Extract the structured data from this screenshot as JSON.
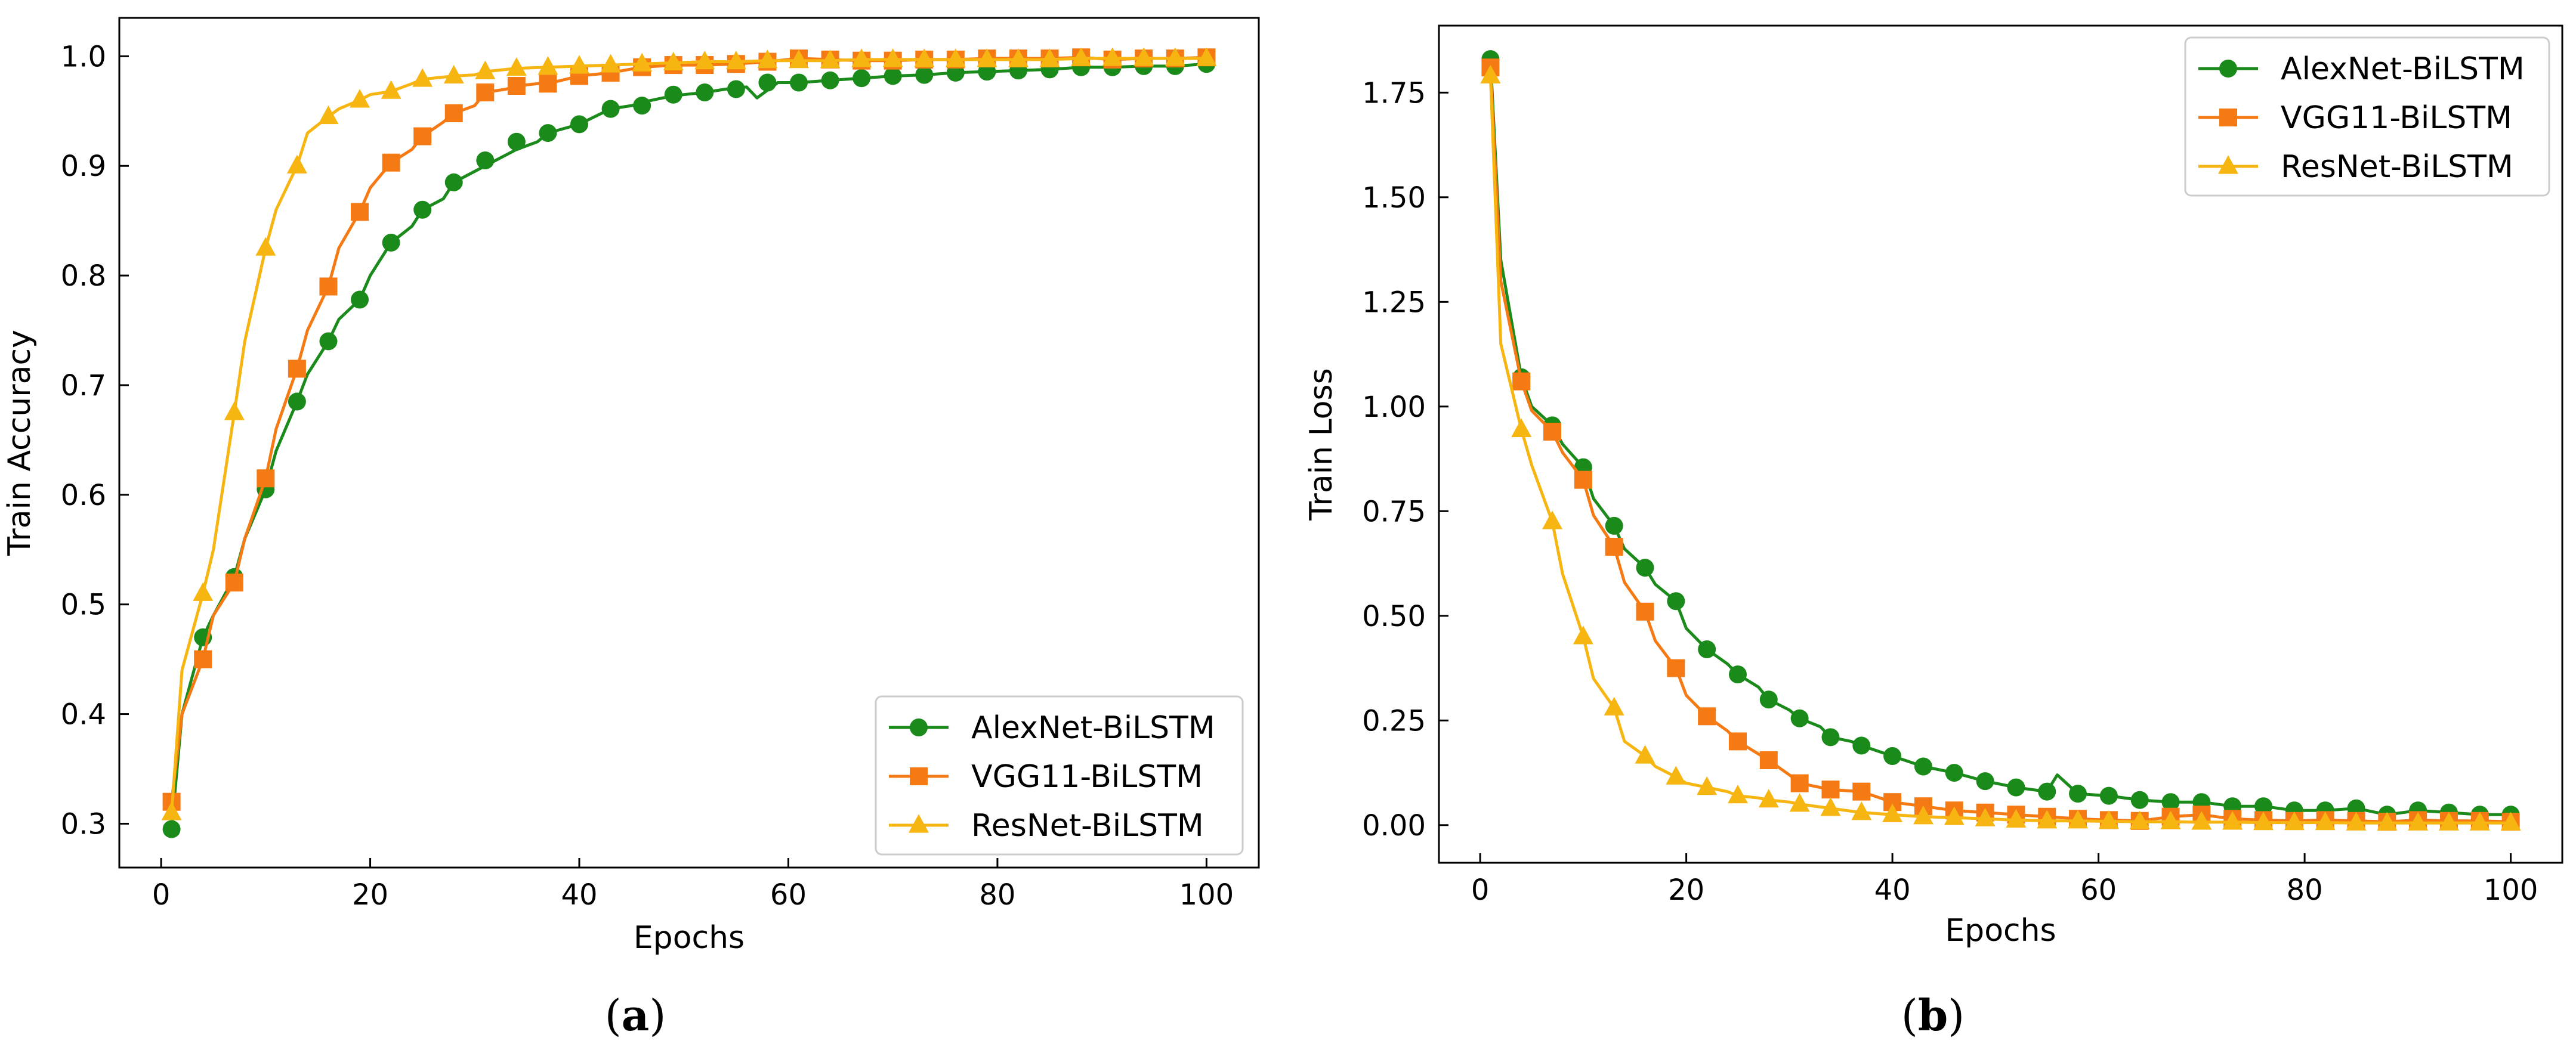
{
  "chart_data": [
    {
      "type": "line",
      "panel": "a",
      "caption": {
        "open": "(",
        "letter": "a",
        "close": ")"
      },
      "xlabel": "Epochs",
      "ylabel": "Train Accuracy",
      "xlim": [
        -4,
        105
      ],
      "ylim": [
        0.26,
        1.035
      ],
      "xticks": [
        0,
        20,
        40,
        60,
        80,
        100
      ],
      "xtick_labels": [
        "0",
        "20",
        "40",
        "60",
        "80",
        "100"
      ],
      "yticks": [
        0.3,
        0.4,
        0.5,
        0.6,
        0.7,
        0.8,
        0.9,
        1.0
      ],
      "ytick_labels": [
        "0.3",
        "0.4",
        "0.5",
        "0.6",
        "0.7",
        "0.8",
        "0.9",
        "1.0"
      ],
      "legend_position": "lower-right",
      "series": [
        {
          "name": "AlexNet-BiLSTM",
          "color": "#1a8a1a",
          "marker": "circle",
          "x": [
            1,
            2,
            4,
            5,
            7,
            8,
            10,
            11,
            13,
            14,
            16,
            17,
            19,
            20,
            22,
            24,
            25,
            27,
            28,
            30,
            32,
            34,
            36,
            37,
            40,
            43,
            45,
            46,
            48,
            50,
            52,
            54,
            56,
            57,
            59,
            61,
            64,
            67,
            70,
            73,
            76,
            79,
            82,
            85,
            88,
            91,
            94,
            97,
            100
          ],
          "y": [
            0.295,
            0.4,
            0.47,
            0.49,
            0.525,
            0.56,
            0.605,
            0.64,
            0.685,
            0.71,
            0.74,
            0.76,
            0.778,
            0.8,
            0.83,
            0.845,
            0.86,
            0.87,
            0.885,
            0.895,
            0.905,
            0.915,
            0.922,
            0.93,
            0.938,
            0.952,
            0.955,
            0.958,
            0.962,
            0.965,
            0.967,
            0.97,
            0.972,
            0.962,
            0.976,
            0.976,
            0.978,
            0.98,
            0.982,
            0.983,
            0.985,
            0.986,
            0.987,
            0.988,
            0.99,
            0.99,
            0.991,
            0.991,
            0.993
          ],
          "markers_x": [
            1,
            4,
            7,
            10,
            13,
            16,
            19,
            22,
            25,
            28,
            31,
            34,
            37,
            40,
            43,
            46,
            49,
            52,
            55,
            58,
            61,
            64,
            67,
            70,
            73,
            76,
            79,
            82,
            85,
            88,
            91,
            94,
            97,
            100
          ],
          "markers_y": [
            0.295,
            0.47,
            0.525,
            0.605,
            0.685,
            0.74,
            0.778,
            0.83,
            0.86,
            0.885,
            0.905,
            0.922,
            0.93,
            0.938,
            0.952,
            0.955,
            0.965,
            0.967,
            0.97,
            0.976,
            0.976,
            0.978,
            0.98,
            0.982,
            0.983,
            0.985,
            0.986,
            0.987,
            0.988,
            0.99,
            0.99,
            0.991,
            0.991,
            0.993
          ]
        },
        {
          "name": "VGG11-BiLSTM",
          "color": "#f57a14",
          "marker": "square",
          "x": [
            1,
            2,
            4,
            5,
            7,
            8,
            10,
            11,
            13,
            14,
            16,
            17,
            19,
            20,
            22,
            24,
            25,
            27,
            28,
            30,
            31,
            33,
            34,
            36,
            37,
            40,
            43,
            46,
            49,
            52,
            55,
            58,
            61,
            64,
            67,
            70,
            73,
            76,
            79,
            82,
            85,
            88,
            91,
            94,
            97,
            100
          ],
          "y": [
            0.32,
            0.4,
            0.45,
            0.49,
            0.52,
            0.56,
            0.615,
            0.66,
            0.715,
            0.75,
            0.79,
            0.825,
            0.858,
            0.88,
            0.903,
            0.915,
            0.927,
            0.94,
            0.948,
            0.955,
            0.967,
            0.97,
            0.973,
            0.975,
            0.975,
            0.982,
            0.985,
            0.99,
            0.992,
            0.992,
            0.993,
            0.995,
            0.998,
            0.997,
            0.996,
            0.996,
            0.997,
            0.997,
            0.998,
            0.998,
            0.998,
            0.999,
            0.997,
            0.998,
            0.998,
            0.999
          ],
          "markers_x": [
            1,
            4,
            7,
            10,
            13,
            16,
            19,
            22,
            25,
            28,
            31,
            34,
            37,
            40,
            43,
            46,
            49,
            52,
            55,
            58,
            61,
            64,
            67,
            70,
            73,
            76,
            79,
            82,
            85,
            88,
            91,
            94,
            97,
            100
          ],
          "markers_y": [
            0.32,
            0.45,
            0.52,
            0.615,
            0.715,
            0.79,
            0.858,
            0.903,
            0.927,
            0.948,
            0.967,
            0.973,
            0.975,
            0.982,
            0.985,
            0.99,
            0.992,
            0.992,
            0.993,
            0.995,
            0.998,
            0.997,
            0.996,
            0.996,
            0.997,
            0.997,
            0.998,
            0.998,
            0.998,
            0.999,
            0.997,
            0.998,
            0.998,
            0.999
          ]
        },
        {
          "name": "ResNet-BiLSTM",
          "color": "#f7b512",
          "marker": "triangle",
          "x": [
            1,
            2,
            4,
            5,
            7,
            8,
            10,
            11,
            13,
            14,
            16,
            17,
            19,
            20,
            22,
            24,
            25,
            27,
            28,
            30,
            31,
            34,
            37,
            40,
            43,
            46,
            49,
            52,
            55,
            58,
            61,
            64,
            67,
            70,
            73,
            76,
            79,
            82,
            85,
            88,
            91,
            94,
            97,
            100
          ],
          "y": [
            0.31,
            0.44,
            0.51,
            0.55,
            0.675,
            0.74,
            0.825,
            0.86,
            0.9,
            0.93,
            0.945,
            0.952,
            0.96,
            0.965,
            0.968,
            0.975,
            0.979,
            0.981,
            0.982,
            0.983,
            0.986,
            0.989,
            0.99,
            0.991,
            0.992,
            0.993,
            0.994,
            0.995,
            0.995,
            0.996,
            0.996,
            0.996,
            0.997,
            0.997,
            0.997,
            0.997,
            0.997,
            0.997,
            0.997,
            0.998,
            0.998,
            0.998,
            0.998,
            0.998
          ],
          "markers_x": [
            1,
            4,
            7,
            10,
            13,
            16,
            19,
            22,
            25,
            28,
            31,
            34,
            37,
            40,
            43,
            46,
            49,
            52,
            55,
            58,
            61,
            64,
            67,
            70,
            73,
            76,
            79,
            82,
            85,
            88,
            91,
            94,
            97,
            100
          ],
          "markers_y": [
            0.31,
            0.51,
            0.675,
            0.825,
            0.9,
            0.945,
            0.96,
            0.968,
            0.979,
            0.982,
            0.986,
            0.989,
            0.99,
            0.991,
            0.992,
            0.993,
            0.994,
            0.995,
            0.995,
            0.996,
            0.996,
            0.996,
            0.997,
            0.997,
            0.997,
            0.997,
            0.997,
            0.997,
            0.997,
            0.998,
            0.998,
            0.998,
            0.998,
            0.998
          ]
        }
      ]
    },
    {
      "type": "line",
      "panel": "b",
      "caption": {
        "open": "(",
        "letter": "b",
        "close": ")"
      },
      "xlabel": "Epochs",
      "ylabel": "Train Loss",
      "xlim": [
        -4,
        105
      ],
      "ylim": [
        -0.09,
        1.91
      ],
      "xticks": [
        0,
        20,
        40,
        60,
        80,
        100
      ],
      "xtick_labels": [
        "0",
        "20",
        "40",
        "60",
        "80",
        "100"
      ],
      "yticks": [
        0.0,
        0.25,
        0.5,
        0.75,
        1.0,
        1.25,
        1.5,
        1.75
      ],
      "ytick_labels": [
        "0.00",
        "0.25",
        "0.50",
        "0.75",
        "1.00",
        "1.25",
        "1.50",
        "1.75"
      ],
      "legend_position": "top-right",
      "series": [
        {
          "name": "AlexNet-BiLSTM",
          "color": "#1a8a1a",
          "marker": "circle",
          "x": [
            1,
            2,
            4,
            5,
            7,
            8,
            10,
            11,
            13,
            14,
            16,
            17,
            19,
            20,
            22,
            24,
            25,
            27,
            28,
            30,
            31,
            33,
            34,
            36,
            37,
            40,
            43,
            46,
            49,
            52,
            55,
            56,
            58,
            61,
            64,
            67,
            70,
            73,
            76,
            79,
            82,
            85,
            88,
            91,
            94,
            97,
            100
          ],
          "y": [
            1.83,
            1.35,
            1.07,
            1.0,
            0.955,
            0.91,
            0.855,
            0.78,
            0.715,
            0.66,
            0.615,
            0.575,
            0.535,
            0.47,
            0.42,
            0.385,
            0.36,
            0.33,
            0.3,
            0.275,
            0.255,
            0.235,
            0.21,
            0.2,
            0.19,
            0.165,
            0.14,
            0.125,
            0.105,
            0.09,
            0.08,
            0.12,
            0.075,
            0.07,
            0.06,
            0.055,
            0.055,
            0.045,
            0.045,
            0.035,
            0.035,
            0.04,
            0.025,
            0.035,
            0.03,
            0.025,
            0.025
          ],
          "markers_x": [
            1,
            4,
            7,
            10,
            13,
            16,
            19,
            22,
            25,
            28,
            31,
            34,
            37,
            40,
            43,
            46,
            49,
            52,
            55,
            58,
            61,
            64,
            67,
            70,
            73,
            76,
            79,
            82,
            85,
            88,
            91,
            94,
            97,
            100
          ],
          "markers_y": [
            1.83,
            1.07,
            0.955,
            0.855,
            0.715,
            0.615,
            0.535,
            0.42,
            0.36,
            0.3,
            0.255,
            0.21,
            0.19,
            0.165,
            0.14,
            0.125,
            0.105,
            0.09,
            0.08,
            0.075,
            0.07,
            0.06,
            0.055,
            0.055,
            0.045,
            0.045,
            0.035,
            0.035,
            0.04,
            0.025,
            0.035,
            0.03,
            0.025,
            0.025
          ]
        },
        {
          "name": "VGG11-BiLSTM",
          "color": "#f57a14",
          "marker": "square",
          "x": [
            1,
            2,
            4,
            5,
            7,
            8,
            10,
            11,
            13,
            14,
            16,
            17,
            19,
            20,
            22,
            24,
            25,
            27,
            28,
            30,
            31,
            34,
            37,
            40,
            43,
            46,
            49,
            52,
            55,
            58,
            61,
            64,
            67,
            70,
            73,
            76,
            79,
            82,
            85,
            88,
            91,
            94,
            97,
            100
          ],
          "y": [
            1.81,
            1.3,
            1.06,
            0.99,
            0.94,
            0.89,
            0.825,
            0.74,
            0.665,
            0.58,
            0.51,
            0.44,
            0.375,
            0.31,
            0.26,
            0.225,
            0.2,
            0.17,
            0.155,
            0.12,
            0.1,
            0.085,
            0.08,
            0.055,
            0.045,
            0.035,
            0.03,
            0.025,
            0.02,
            0.015,
            0.012,
            0.01,
            0.02,
            0.025,
            0.015,
            0.012,
            0.01,
            0.012,
            0.01,
            0.008,
            0.012,
            0.01,
            0.01,
            0.008
          ],
          "markers_x": [
            1,
            4,
            7,
            10,
            13,
            16,
            19,
            22,
            25,
            28,
            31,
            34,
            37,
            40,
            43,
            46,
            49,
            52,
            55,
            58,
            61,
            64,
            67,
            70,
            73,
            76,
            79,
            82,
            85,
            88,
            91,
            94,
            97,
            100
          ],
          "markers_y": [
            1.81,
            1.06,
            0.94,
            0.825,
            0.665,
            0.51,
            0.375,
            0.26,
            0.2,
            0.155,
            0.1,
            0.085,
            0.08,
            0.055,
            0.045,
            0.035,
            0.03,
            0.025,
            0.02,
            0.015,
            0.012,
            0.01,
            0.02,
            0.025,
            0.015,
            0.012,
            0.01,
            0.012,
            0.01,
            0.008,
            0.012,
            0.01,
            0.01,
            0.008
          ]
        },
        {
          "name": "ResNet-BiLSTM",
          "color": "#f7b512",
          "marker": "triangle",
          "x": [
            1,
            2,
            4,
            5,
            7,
            8,
            10,
            11,
            13,
            14,
            16,
            17,
            19,
            20,
            22,
            24,
            25,
            27,
            28,
            30,
            31,
            34,
            37,
            40,
            43,
            46,
            49,
            52,
            55,
            58,
            61,
            64,
            67,
            70,
            73,
            76,
            79,
            82,
            85,
            88,
            91,
            94,
            97,
            100
          ],
          "y": [
            1.79,
            1.15,
            0.945,
            0.86,
            0.725,
            0.6,
            0.45,
            0.35,
            0.28,
            0.2,
            0.165,
            0.14,
            0.115,
            0.1,
            0.09,
            0.08,
            0.07,
            0.065,
            0.06,
            0.055,
            0.05,
            0.04,
            0.03,
            0.025,
            0.02,
            0.018,
            0.015,
            0.012,
            0.01,
            0.01,
            0.009,
            0.008,
            0.008,
            0.007,
            0.007,
            0.006,
            0.006,
            0.006,
            0.005,
            0.005,
            0.005,
            0.005,
            0.005,
            0.005
          ],
          "markers_x": [
            1,
            4,
            7,
            10,
            13,
            16,
            19,
            22,
            25,
            28,
            31,
            34,
            37,
            40,
            43,
            46,
            49,
            52,
            55,
            58,
            61,
            64,
            67,
            70,
            73,
            76,
            79,
            82,
            85,
            88,
            91,
            94,
            97,
            100
          ],
          "markers_y": [
            1.79,
            0.945,
            0.725,
            0.45,
            0.28,
            0.165,
            0.115,
            0.09,
            0.07,
            0.06,
            0.05,
            0.04,
            0.03,
            0.025,
            0.02,
            0.018,
            0.015,
            0.012,
            0.01,
            0.01,
            0.009,
            0.008,
            0.008,
            0.007,
            0.007,
            0.006,
            0.006,
            0.006,
            0.005,
            0.005,
            0.005,
            0.005,
            0.005,
            0.005
          ]
        }
      ]
    }
  ]
}
